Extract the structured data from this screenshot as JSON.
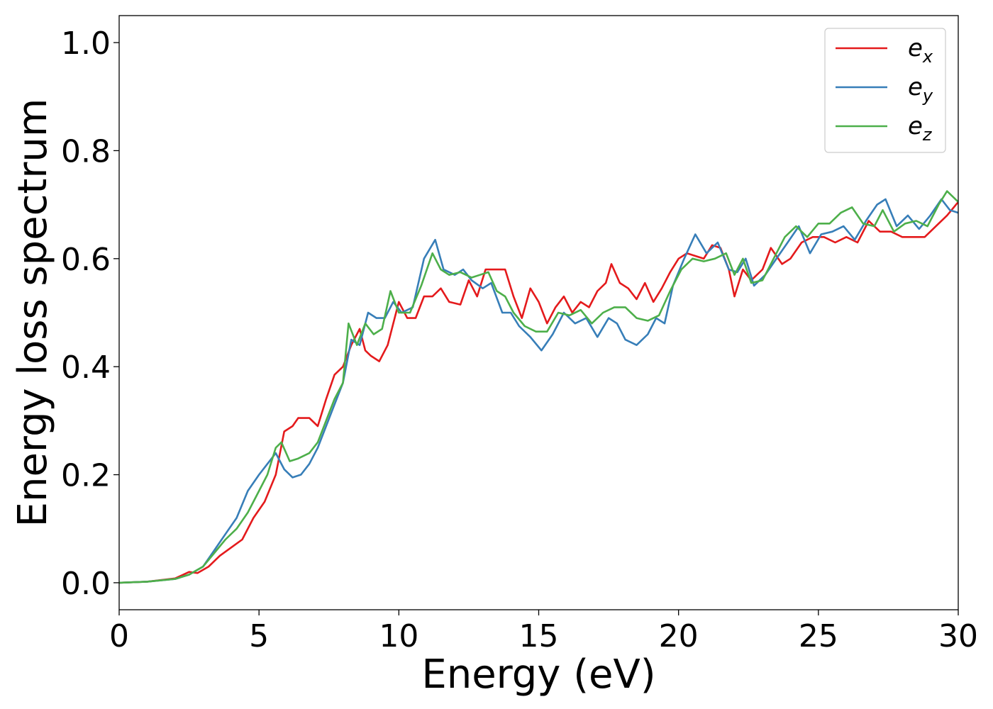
{
  "chart_data": {
    "type": "line",
    "title": "",
    "xlabel": "Energy (eV)",
    "ylabel": "Energy loss spectrum",
    "xlim": [
      0,
      30
    ],
    "ylim": [
      -0.05,
      1.05
    ],
    "xticks": [
      0,
      5,
      10,
      15,
      20,
      25,
      30
    ],
    "xtick_labels": [
      "0",
      "5",
      "10",
      "15",
      "20",
      "25",
      "30"
    ],
    "yticks": [
      0.0,
      0.2,
      0.4,
      0.6,
      0.8,
      1.0
    ],
    "ytick_labels": [
      "0.0",
      "0.2",
      "0.4",
      "0.6",
      "0.8",
      "1.0"
    ],
    "grid": false,
    "legend_position": "top-right",
    "series": [
      {
        "name": "e_x",
        "label_base": "e",
        "label_sub": "x",
        "color": "#e41a1c",
        "points": [
          [
            0,
            0
          ],
          [
            1,
            0.002
          ],
          [
            2,
            0.008
          ],
          [
            2.5,
            0.02
          ],
          [
            2.8,
            0.018
          ],
          [
            3.2,
            0.03
          ],
          [
            3.6,
            0.05
          ],
          [
            4,
            0.065
          ],
          [
            4.4,
            0.08
          ],
          [
            4.8,
            0.12
          ],
          [
            5.2,
            0.15
          ],
          [
            5.6,
            0.2
          ],
          [
            5.9,
            0.28
          ],
          [
            6.2,
            0.29
          ],
          [
            6.4,
            0.305
          ],
          [
            6.8,
            0.305
          ],
          [
            7.1,
            0.29
          ],
          [
            7.4,
            0.34
          ],
          [
            7.7,
            0.385
          ],
          [
            8,
            0.4
          ],
          [
            8.3,
            0.44
          ],
          [
            8.6,
            0.47
          ],
          [
            8.8,
            0.43
          ],
          [
            9,
            0.42
          ],
          [
            9.3,
            0.41
          ],
          [
            9.6,
            0.44
          ],
          [
            10,
            0.52
          ],
          [
            10.3,
            0.49
          ],
          [
            10.6,
            0.49
          ],
          [
            10.9,
            0.53
          ],
          [
            11.2,
            0.53
          ],
          [
            11.5,
            0.545
          ],
          [
            11.8,
            0.52
          ],
          [
            12.2,
            0.515
          ],
          [
            12.5,
            0.56
          ],
          [
            12.8,
            0.53
          ],
          [
            13.1,
            0.58
          ],
          [
            13.5,
            0.58
          ],
          [
            13.8,
            0.58
          ],
          [
            14.1,
            0.53
          ],
          [
            14.4,
            0.49
          ],
          [
            14.7,
            0.545
          ],
          [
            15,
            0.52
          ],
          [
            15.3,
            0.48
          ],
          [
            15.6,
            0.51
          ],
          [
            15.9,
            0.53
          ],
          [
            16.2,
            0.5
          ],
          [
            16.5,
            0.52
          ],
          [
            16.8,
            0.51
          ],
          [
            17.1,
            0.54
          ],
          [
            17.4,
            0.555
          ],
          [
            17.6,
            0.59
          ],
          [
            17.9,
            0.555
          ],
          [
            18.2,
            0.545
          ],
          [
            18.5,
            0.525
          ],
          [
            18.8,
            0.555
          ],
          [
            19.1,
            0.52
          ],
          [
            19.4,
            0.545
          ],
          [
            19.7,
            0.575
          ],
          [
            20,
            0.6
          ],
          [
            20.3,
            0.61
          ],
          [
            20.6,
            0.605
          ],
          [
            20.9,
            0.6
          ],
          [
            21.2,
            0.625
          ],
          [
            21.5,
            0.62
          ],
          [
            21.8,
            0.58
          ],
          [
            22,
            0.53
          ],
          [
            22.3,
            0.58
          ],
          [
            22.6,
            0.56
          ],
          [
            23,
            0.58
          ],
          [
            23.3,
            0.62
          ],
          [
            23.7,
            0.59
          ],
          [
            24,
            0.6
          ],
          [
            24.4,
            0.63
          ],
          [
            24.8,
            0.64
          ],
          [
            25.2,
            0.64
          ],
          [
            25.6,
            0.63
          ],
          [
            26,
            0.64
          ],
          [
            26.4,
            0.63
          ],
          [
            26.8,
            0.67
          ],
          [
            27.2,
            0.65
          ],
          [
            27.6,
            0.65
          ],
          [
            28,
            0.64
          ],
          [
            28.4,
            0.64
          ],
          [
            28.8,
            0.64
          ],
          [
            29.2,
            0.66
          ],
          [
            29.6,
            0.68
          ],
          [
            30,
            0.705
          ]
        ]
      },
      {
        "name": "e_y",
        "label_base": "e",
        "label_sub": "y",
        "color": "#377eb8",
        "points": [
          [
            0,
            0
          ],
          [
            1,
            0.002
          ],
          [
            2,
            0.007
          ],
          [
            2.5,
            0.015
          ],
          [
            3,
            0.03
          ],
          [
            3.4,
            0.06
          ],
          [
            3.8,
            0.09
          ],
          [
            4.2,
            0.12
          ],
          [
            4.6,
            0.17
          ],
          [
            5,
            0.2
          ],
          [
            5.3,
            0.22
          ],
          [
            5.6,
            0.24
          ],
          [
            5.9,
            0.21
          ],
          [
            6.2,
            0.195
          ],
          [
            6.5,
            0.2
          ],
          [
            6.8,
            0.22
          ],
          [
            7.1,
            0.25
          ],
          [
            7.4,
            0.29
          ],
          [
            7.7,
            0.33
          ],
          [
            8,
            0.37
          ],
          [
            8.3,
            0.45
          ],
          [
            8.6,
            0.44
          ],
          [
            8.9,
            0.5
          ],
          [
            9.2,
            0.49
          ],
          [
            9.5,
            0.49
          ],
          [
            9.8,
            0.52
          ],
          [
            10.1,
            0.5
          ],
          [
            10.5,
            0.51
          ],
          [
            10.9,
            0.6
          ],
          [
            11.3,
            0.635
          ],
          [
            11.6,
            0.58
          ],
          [
            12,
            0.57
          ],
          [
            12.3,
            0.58
          ],
          [
            12.6,
            0.56
          ],
          [
            13,
            0.545
          ],
          [
            13.3,
            0.555
          ],
          [
            13.7,
            0.5
          ],
          [
            14,
            0.5
          ],
          [
            14.3,
            0.475
          ],
          [
            14.7,
            0.455
          ],
          [
            15.1,
            0.43
          ],
          [
            15.5,
            0.46
          ],
          [
            15.9,
            0.5
          ],
          [
            16.3,
            0.48
          ],
          [
            16.7,
            0.49
          ],
          [
            17.1,
            0.455
          ],
          [
            17.5,
            0.49
          ],
          [
            17.8,
            0.48
          ],
          [
            18.1,
            0.45
          ],
          [
            18.5,
            0.44
          ],
          [
            18.9,
            0.46
          ],
          [
            19.2,
            0.49
          ],
          [
            19.5,
            0.48
          ],
          [
            19.8,
            0.55
          ],
          [
            20.2,
            0.6
          ],
          [
            20.6,
            0.645
          ],
          [
            21,
            0.61
          ],
          [
            21.4,
            0.63
          ],
          [
            21.8,
            0.58
          ],
          [
            22.1,
            0.575
          ],
          [
            22.4,
            0.6
          ],
          [
            22.7,
            0.55
          ],
          [
            23.1,
            0.57
          ],
          [
            23.5,
            0.6
          ],
          [
            23.9,
            0.63
          ],
          [
            24.3,
            0.66
          ],
          [
            24.7,
            0.61
          ],
          [
            25.1,
            0.645
          ],
          [
            25.5,
            0.65
          ],
          [
            25.9,
            0.66
          ],
          [
            26.3,
            0.635
          ],
          [
            26.7,
            0.67
          ],
          [
            27.1,
            0.7
          ],
          [
            27.4,
            0.71
          ],
          [
            27.8,
            0.66
          ],
          [
            28.2,
            0.68
          ],
          [
            28.6,
            0.655
          ],
          [
            29,
            0.68
          ],
          [
            29.4,
            0.71
          ],
          [
            29.7,
            0.69
          ],
          [
            30,
            0.685
          ]
        ]
      },
      {
        "name": "e_z",
        "label_base": "e",
        "label_sub": "z",
        "color": "#4daf4a",
        "points": [
          [
            0,
            0
          ],
          [
            1,
            0.002
          ],
          [
            2,
            0.007
          ],
          [
            2.5,
            0.015
          ],
          [
            3,
            0.03
          ],
          [
            3.4,
            0.055
          ],
          [
            3.8,
            0.08
          ],
          [
            4.2,
            0.1
          ],
          [
            4.6,
            0.13
          ],
          [
            5,
            0.17
          ],
          [
            5.3,
            0.2
          ],
          [
            5.6,
            0.25
          ],
          [
            5.8,
            0.26
          ],
          [
            6.1,
            0.225
          ],
          [
            6.4,
            0.23
          ],
          [
            6.8,
            0.24
          ],
          [
            7.1,
            0.26
          ],
          [
            7.4,
            0.3
          ],
          [
            7.7,
            0.34
          ],
          [
            8,
            0.37
          ],
          [
            8.2,
            0.48
          ],
          [
            8.5,
            0.44
          ],
          [
            8.8,
            0.48
          ],
          [
            9.1,
            0.46
          ],
          [
            9.4,
            0.47
          ],
          [
            9.7,
            0.54
          ],
          [
            10,
            0.5
          ],
          [
            10.4,
            0.5
          ],
          [
            10.8,
            0.55
          ],
          [
            11.2,
            0.61
          ],
          [
            11.5,
            0.58
          ],
          [
            11.8,
            0.57
          ],
          [
            12.2,
            0.575
          ],
          [
            12.6,
            0.565
          ],
          [
            12.9,
            0.57
          ],
          [
            13.2,
            0.575
          ],
          [
            13.5,
            0.54
          ],
          [
            13.8,
            0.53
          ],
          [
            14.1,
            0.5
          ],
          [
            14.5,
            0.475
          ],
          [
            14.9,
            0.465
          ],
          [
            15.3,
            0.465
          ],
          [
            15.7,
            0.5
          ],
          [
            16.1,
            0.495
          ],
          [
            16.5,
            0.505
          ],
          [
            16.9,
            0.48
          ],
          [
            17.3,
            0.5
          ],
          [
            17.7,
            0.51
          ],
          [
            18.1,
            0.51
          ],
          [
            18.5,
            0.49
          ],
          [
            18.9,
            0.485
          ],
          [
            19.3,
            0.495
          ],
          [
            19.7,
            0.54
          ],
          [
            20.1,
            0.58
          ],
          [
            20.5,
            0.6
          ],
          [
            20.9,
            0.595
          ],
          [
            21.3,
            0.6
          ],
          [
            21.7,
            0.61
          ],
          [
            22,
            0.57
          ],
          [
            22.3,
            0.6
          ],
          [
            22.6,
            0.555
          ],
          [
            23,
            0.56
          ],
          [
            23.4,
            0.6
          ],
          [
            23.8,
            0.64
          ],
          [
            24.2,
            0.66
          ],
          [
            24.6,
            0.64
          ],
          [
            25,
            0.665
          ],
          [
            25.4,
            0.665
          ],
          [
            25.8,
            0.685
          ],
          [
            26.2,
            0.695
          ],
          [
            26.6,
            0.665
          ],
          [
            27,
            0.66
          ],
          [
            27.3,
            0.69
          ],
          [
            27.7,
            0.65
          ],
          [
            28.1,
            0.665
          ],
          [
            28.5,
            0.67
          ],
          [
            28.9,
            0.66
          ],
          [
            29.3,
            0.7
          ],
          [
            29.6,
            0.725
          ],
          [
            30,
            0.705
          ]
        ]
      }
    ]
  }
}
